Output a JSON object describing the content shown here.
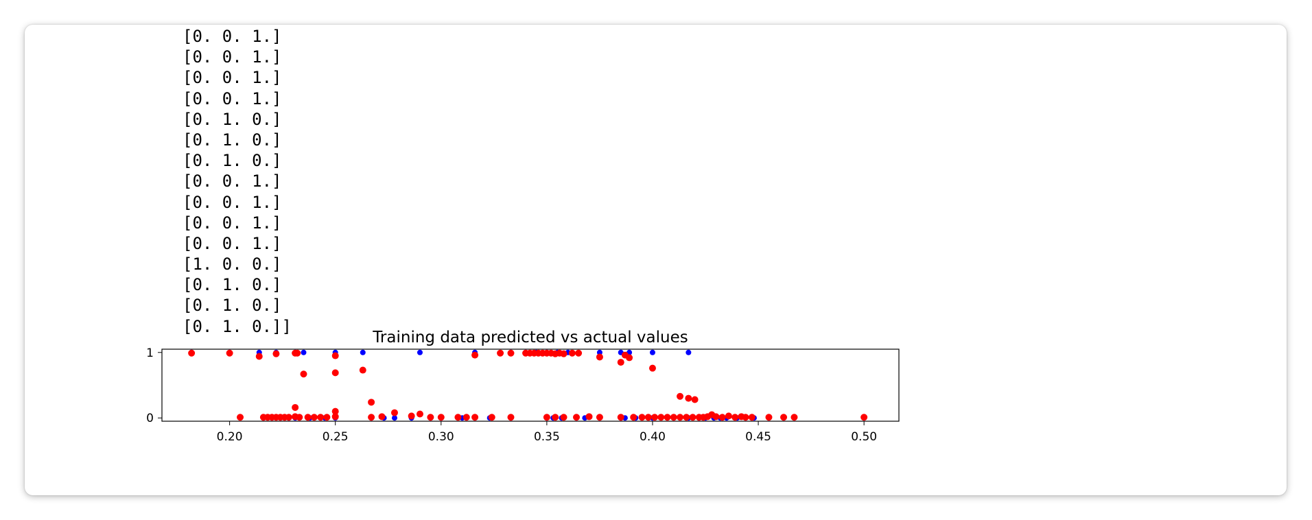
{
  "output": {
    "lines": [
      "[0. 0. 1.]",
      "[0. 0. 1.]",
      "[0. 0. 1.]",
      "[0. 0. 1.]",
      "[0. 1. 0.]",
      "[0. 1. 0.]",
      "[0. 1. 0.]",
      "[0. 0. 1.]",
      "[0. 0. 1.]",
      "[0. 0. 1.]",
      "[0. 0. 1.]",
      "[1. 0. 0.]",
      "[0. 1. 0.]",
      "[0. 1. 0.]",
      "[0. 1. 0.]]"
    ]
  },
  "chart_data": {
    "type": "scatter",
    "title": "Training data predicted vs actual values",
    "xlabel": "",
    "ylabel": "",
    "xlim": [
      0.168,
      0.5165
    ],
    "ylim": [
      -0.05,
      1.05
    ],
    "xticks": [
      "0.20",
      "0.25",
      "0.30",
      "0.35",
      "0.40",
      "0.45",
      "0.50"
    ],
    "xtick_values": [
      0.2,
      0.25,
      0.3,
      0.35,
      0.4,
      0.45,
      0.5
    ],
    "yticks": [
      "0",
      "1"
    ],
    "ytick_values": [
      0,
      1
    ],
    "grid": false,
    "legend": "none",
    "series": [
      {
        "color": "#0000ff",
        "points": [
          [
            0.182,
            1
          ],
          [
            0.2,
            1
          ],
          [
            0.214,
            1
          ],
          [
            0.222,
            1
          ],
          [
            0.231,
            1
          ],
          [
            0.235,
            1
          ],
          [
            0.25,
            1
          ],
          [
            0.263,
            1
          ],
          [
            0.29,
            1
          ],
          [
            0.316,
            1
          ],
          [
            0.333,
            1
          ],
          [
            0.34,
            1
          ],
          [
            0.345,
            1
          ],
          [
            0.35,
            1
          ],
          [
            0.355,
            1
          ],
          [
            0.36,
            1
          ],
          [
            0.375,
            1
          ],
          [
            0.385,
            1
          ],
          [
            0.389,
            1
          ],
          [
            0.4,
            1
          ],
          [
            0.417,
            1
          ],
          [
            0.216,
            0
          ],
          [
            0.22,
            0
          ],
          [
            0.224,
            0
          ],
          [
            0.228,
            0
          ],
          [
            0.231,
            0
          ],
          [
            0.238,
            0
          ],
          [
            0.245,
            0
          ],
          [
            0.25,
            0
          ],
          [
            0.267,
            0
          ],
          [
            0.273,
            0
          ],
          [
            0.278,
            0
          ],
          [
            0.286,
            0
          ],
          [
            0.295,
            0
          ],
          [
            0.3,
            0
          ],
          [
            0.31,
            0
          ],
          [
            0.316,
            0
          ],
          [
            0.323,
            0
          ],
          [
            0.333,
            0
          ],
          [
            0.35,
            0
          ],
          [
            0.353,
            0
          ],
          [
            0.357,
            0
          ],
          [
            0.364,
            0
          ],
          [
            0.368,
            0
          ],
          [
            0.375,
            0
          ],
          [
            0.385,
            0
          ],
          [
            0.387,
            0
          ],
          [
            0.392,
            0
          ],
          [
            0.4,
            0
          ],
          [
            0.41,
            0
          ],
          [
            0.417,
            0
          ],
          [
            0.422,
            0
          ],
          [
            0.425,
            0
          ],
          [
            0.429,
            0
          ],
          [
            0.432,
            0
          ],
          [
            0.435,
            0
          ],
          [
            0.44,
            0
          ],
          [
            0.444,
            0
          ],
          [
            0.448,
            0
          ],
          [
            0.455,
            0
          ],
          [
            0.462,
            0
          ],
          [
            0.467,
            0
          ],
          [
            0.5,
            0
          ]
        ]
      },
      {
        "color": "#ff0000",
        "points": [
          [
            0.182,
            0.99
          ],
          [
            0.2,
            0.99
          ],
          [
            0.214,
            0.94
          ],
          [
            0.222,
            0.98
          ],
          [
            0.231,
            0.99
          ],
          [
            0.232,
            0.99
          ],
          [
            0.25,
            0.95
          ],
          [
            0.316,
            0.96
          ],
          [
            0.328,
            0.99
          ],
          [
            0.333,
            0.99
          ],
          [
            0.34,
            0.99
          ],
          [
            0.342,
            0.99
          ],
          [
            0.344,
            0.99
          ],
          [
            0.346,
            0.99
          ],
          [
            0.348,
            0.99
          ],
          [
            0.35,
            0.99
          ],
          [
            0.352,
            0.99
          ],
          [
            0.354,
            0.98
          ],
          [
            0.356,
            0.99
          ],
          [
            0.358,
            0.98
          ],
          [
            0.362,
            0.99
          ],
          [
            0.365,
            0.99
          ],
          [
            0.375,
            0.93
          ],
          [
            0.385,
            0.85
          ],
          [
            0.387,
            0.96
          ],
          [
            0.389,
            0.92
          ],
          [
            0.4,
            0.76
          ],
          [
            0.235,
            0.67
          ],
          [
            0.25,
            0.69
          ],
          [
            0.263,
            0.73
          ],
          [
            0.267,
            0.24
          ],
          [
            0.231,
            0.16
          ],
          [
            0.413,
            0.33
          ],
          [
            0.417,
            0.3
          ],
          [
            0.42,
            0.28
          ],
          [
            0.205,
            0.01
          ],
          [
            0.216,
            0.01
          ],
          [
            0.218,
            0.01
          ],
          [
            0.22,
            0.01
          ],
          [
            0.222,
            0.01
          ],
          [
            0.224,
            0.01
          ],
          [
            0.226,
            0.01
          ],
          [
            0.228,
            0.01
          ],
          [
            0.231,
            0.02
          ],
          [
            0.233,
            0.01
          ],
          [
            0.237,
            0.01
          ],
          [
            0.24,
            0.01
          ],
          [
            0.243,
            0.01
          ],
          [
            0.246,
            0.01
          ],
          [
            0.25,
            0.1
          ],
          [
            0.25,
            0.02
          ],
          [
            0.267,
            0.01
          ],
          [
            0.272,
            0.02
          ],
          [
            0.278,
            0.08
          ],
          [
            0.286,
            0.03
          ],
          [
            0.29,
            0.06
          ],
          [
            0.295,
            0.01
          ],
          [
            0.3,
            0.01
          ],
          [
            0.308,
            0.01
          ],
          [
            0.312,
            0.01
          ],
          [
            0.316,
            0.01
          ],
          [
            0.324,
            0.01
          ],
          [
            0.333,
            0.01
          ],
          [
            0.35,
            0.01
          ],
          [
            0.354,
            0.01
          ],
          [
            0.358,
            0.01
          ],
          [
            0.364,
            0.01
          ],
          [
            0.37,
            0.02
          ],
          [
            0.375,
            0.01
          ],
          [
            0.385,
            0.01
          ],
          [
            0.391,
            0.01
          ],
          [
            0.395,
            0.01
          ],
          [
            0.398,
            0.01
          ],
          [
            0.401,
            0.01
          ],
          [
            0.404,
            0.01
          ],
          [
            0.407,
            0.01
          ],
          [
            0.41,
            0.01
          ],
          [
            0.413,
            0.01
          ],
          [
            0.416,
            0.01
          ],
          [
            0.419,
            0.01
          ],
          [
            0.422,
            0.01
          ],
          [
            0.424,
            0.01
          ],
          [
            0.426,
            0.02
          ],
          [
            0.428,
            0.05
          ],
          [
            0.43,
            0.02
          ],
          [
            0.433,
            0.01
          ],
          [
            0.436,
            0.03
          ],
          [
            0.439,
            0.01
          ],
          [
            0.442,
            0.02
          ],
          [
            0.444,
            0.01
          ],
          [
            0.447,
            0.01
          ],
          [
            0.455,
            0.01
          ],
          [
            0.462,
            0.01
          ],
          [
            0.467,
            0.01
          ],
          [
            0.5,
            0.01
          ]
        ]
      }
    ]
  }
}
